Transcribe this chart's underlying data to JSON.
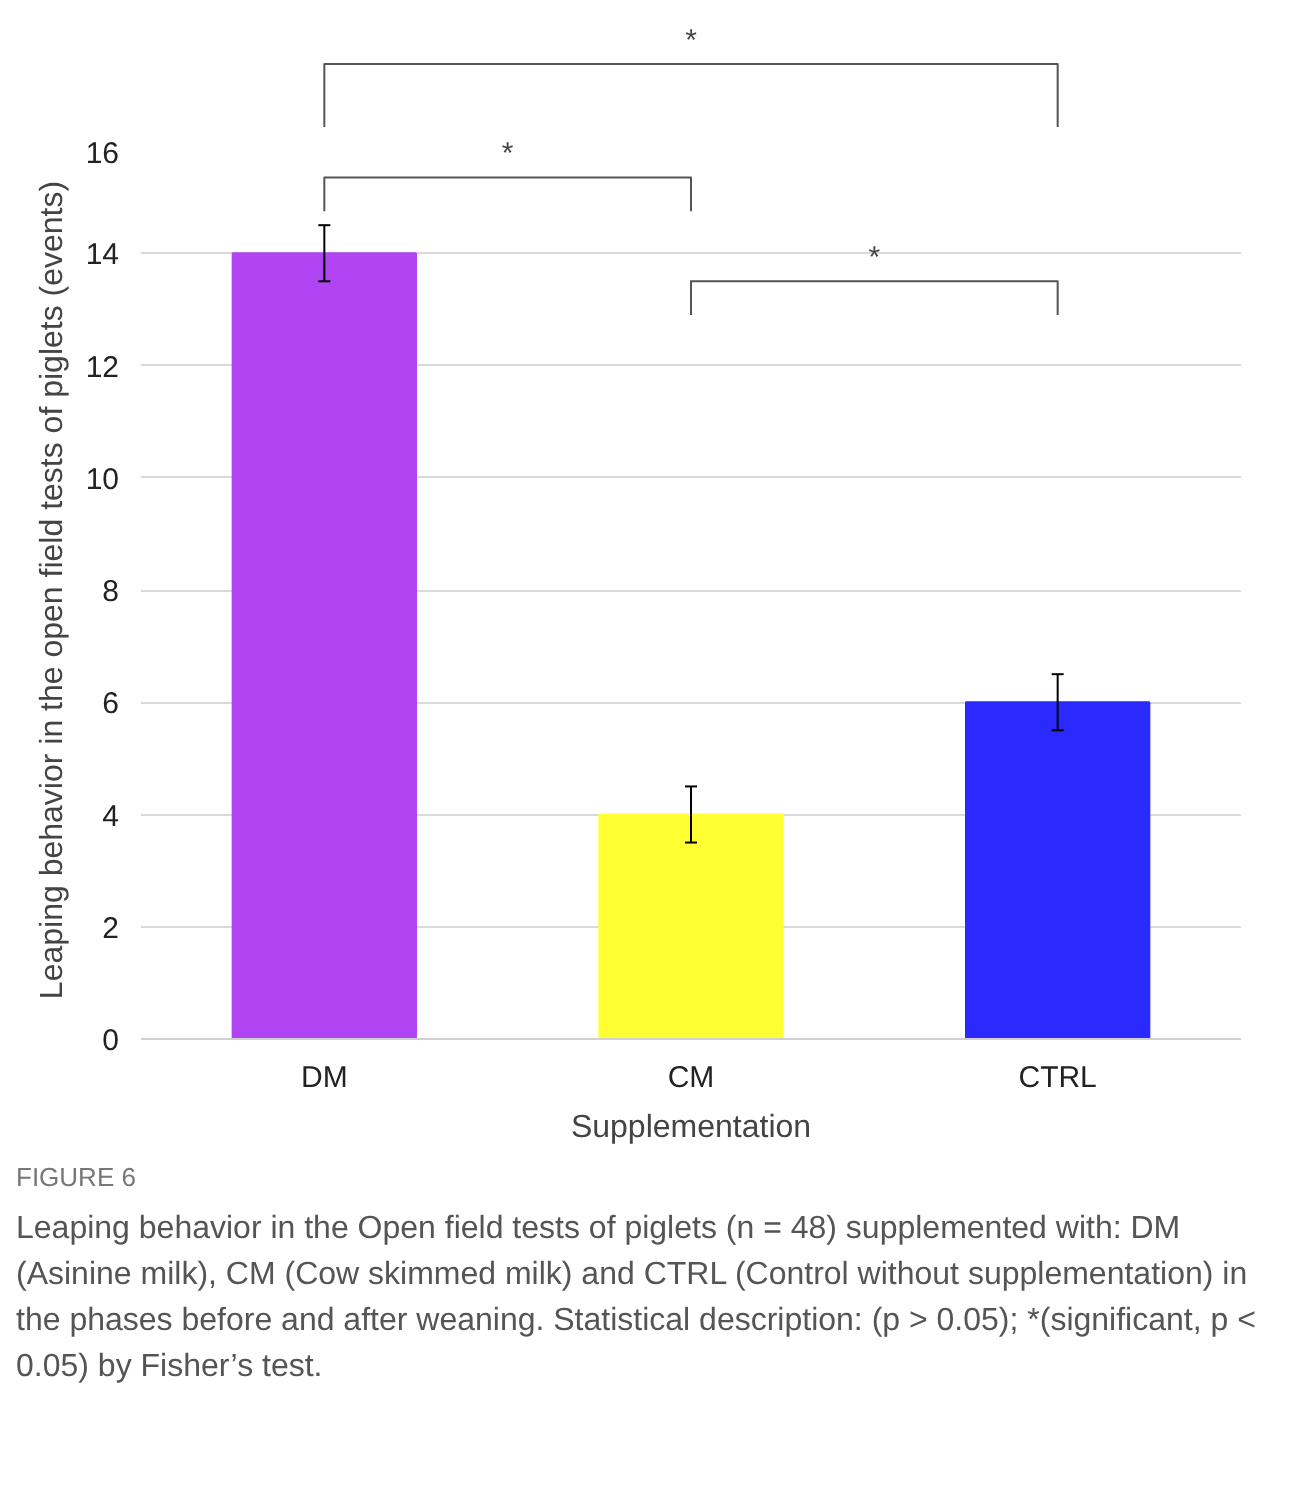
{
  "chart_data": {
    "type": "bar",
    "xlabel": "Supplementation",
    "ylabel": "Leaping behavior in the open field tests of piglets (events)",
    "categories": [
      "DM",
      "CM",
      "CTRL"
    ],
    "values": [
      14,
      4,
      6
    ],
    "colors": [
      "#b044f2",
      "#ffff33",
      "#2a2aff"
    ],
    "errors": [
      0.5,
      0.5,
      0.5
    ],
    "ylim": [
      0,
      16
    ],
    "yticks": [
      0,
      2,
      4,
      6,
      8,
      10,
      12,
      14,
      16
    ],
    "grid": "y",
    "annotations": [
      "*",
      "*",
      "*",
      "FIGURE 6",
      "Leaping behavior in the Open field tests of piglets (n = 48) supplemented with: DM (Asinine milk), CM (Cow skimmed milk) and CTRL (Control without supplementation) in the phases before and after weaning. Statistical description: (p > 0.05); *(significant, p < 0.05) by Fisher’s test."
    ]
  }
}
